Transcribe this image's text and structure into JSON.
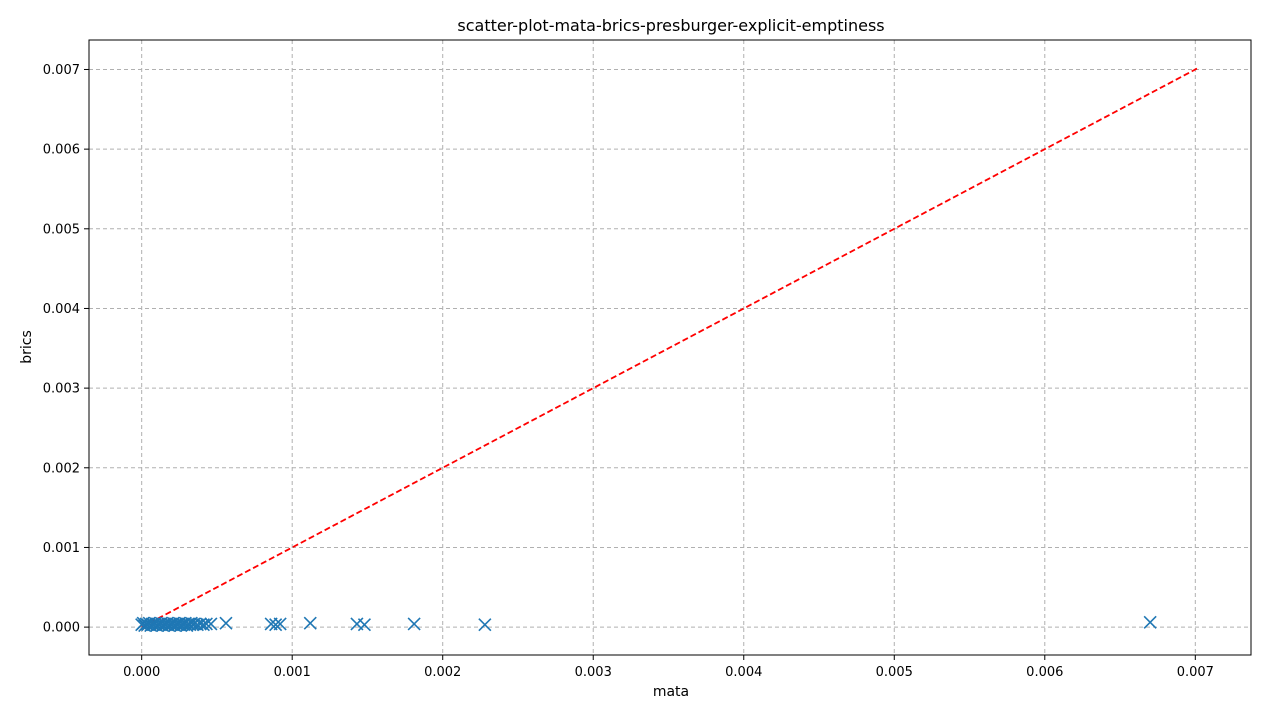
{
  "chart_data": {
    "type": "scatter",
    "title": "scatter-plot-mata-brics-presburger-explicit-emptiness",
    "xlabel": "mata",
    "ylabel": "brics",
    "xlim": [
      -0.00035,
      0.00737
    ],
    "ylim": [
      -0.00035,
      0.00737
    ],
    "xticks": [
      0.0,
      0.001,
      0.002,
      0.003,
      0.004,
      0.005,
      0.006,
      0.007
    ],
    "yticks": [
      0.0,
      0.001,
      0.002,
      0.003,
      0.004,
      0.005,
      0.006,
      0.007
    ],
    "xtick_labels": [
      "0.000",
      "0.001",
      "0.002",
      "0.003",
      "0.004",
      "0.005",
      "0.006",
      "0.007"
    ],
    "ytick_labels": [
      "0.000",
      "0.001",
      "0.002",
      "0.003",
      "0.004",
      "0.005",
      "0.006",
      "0.007"
    ],
    "grid": true,
    "marker": "x",
    "series": [
      {
        "color": "#1f77b4",
        "points": [
          {
            "x": 0.0,
            "y": 3e-05
          },
          {
            "x": 1e-05,
            "y": 5e-05
          },
          {
            "x": 2e-05,
            "y": 2e-05
          },
          {
            "x": 3e-05,
            "y": 4e-05
          },
          {
            "x": 4e-05,
            "y": 3e-05
          },
          {
            "x": 5e-05,
            "y": 5e-05
          },
          {
            "x": 6e-05,
            "y": 2e-05
          },
          {
            "x": 7e-05,
            "y": 4e-05
          },
          {
            "x": 8e-05,
            "y": 3e-05
          },
          {
            "x": 9e-05,
            "y": 5e-05
          },
          {
            "x": 0.0001,
            "y": 2e-05
          },
          {
            "x": 0.00011,
            "y": 4e-05
          },
          {
            "x": 0.00012,
            "y": 3e-05
          },
          {
            "x": 0.00013,
            "y": 5e-05
          },
          {
            "x": 0.00014,
            "y": 2e-05
          },
          {
            "x": 0.00015,
            "y": 4e-05
          },
          {
            "x": 0.00016,
            "y": 3e-05
          },
          {
            "x": 0.00017,
            "y": 5e-05
          },
          {
            "x": 0.00018,
            "y": 2e-05
          },
          {
            "x": 0.00019,
            "y": 4e-05
          },
          {
            "x": 0.0002,
            "y": 3e-05
          },
          {
            "x": 0.00021,
            "y": 5e-05
          },
          {
            "x": 0.00022,
            "y": 2e-05
          },
          {
            "x": 0.00023,
            "y": 4e-05
          },
          {
            "x": 0.00024,
            "y": 3e-05
          },
          {
            "x": 0.00025,
            "y": 5e-05
          },
          {
            "x": 0.00026,
            "y": 2e-05
          },
          {
            "x": 0.00027,
            "y": 4e-05
          },
          {
            "x": 0.00028,
            "y": 3e-05
          },
          {
            "x": 0.00029,
            "y": 5e-05
          },
          {
            "x": 0.0003,
            "y": 2e-05
          },
          {
            "x": 0.00031,
            "y": 4e-05
          },
          {
            "x": 0.00032,
            "y": 3e-05
          },
          {
            "x": 0.00033,
            "y": 5e-05
          },
          {
            "x": 0.00034,
            "y": 3e-05
          },
          {
            "x": 0.00035,
            "y": 4e-05
          },
          {
            "x": 0.00037,
            "y": 3e-05
          },
          {
            "x": 0.00039,
            "y": 4e-05
          },
          {
            "x": 0.00041,
            "y": 3e-05
          },
          {
            "x": 0.00043,
            "y": 4e-05
          },
          {
            "x": 0.00046,
            "y": 4e-05
          },
          {
            "x": 0.00056,
            "y": 5e-05
          },
          {
            "x": 0.00086,
            "y": 4e-05
          },
          {
            "x": 0.00089,
            "y": 3e-05
          },
          {
            "x": 0.00092,
            "y": 4e-05
          },
          {
            "x": 0.00112,
            "y": 5e-05
          },
          {
            "x": 0.00143,
            "y": 4e-05
          },
          {
            "x": 0.00148,
            "y": 3e-05
          },
          {
            "x": 0.00181,
            "y": 4e-05
          },
          {
            "x": 0.00228,
            "y": 3e-05
          },
          {
            "x": 0.0067,
            "y": 6e-05
          }
        ]
      }
    ],
    "reference_line": {
      "color": "#ff0000",
      "style": "dashed",
      "points": [
        [
          0.0,
          0.0
        ],
        [
          0.00702,
          0.00702
        ]
      ]
    }
  }
}
